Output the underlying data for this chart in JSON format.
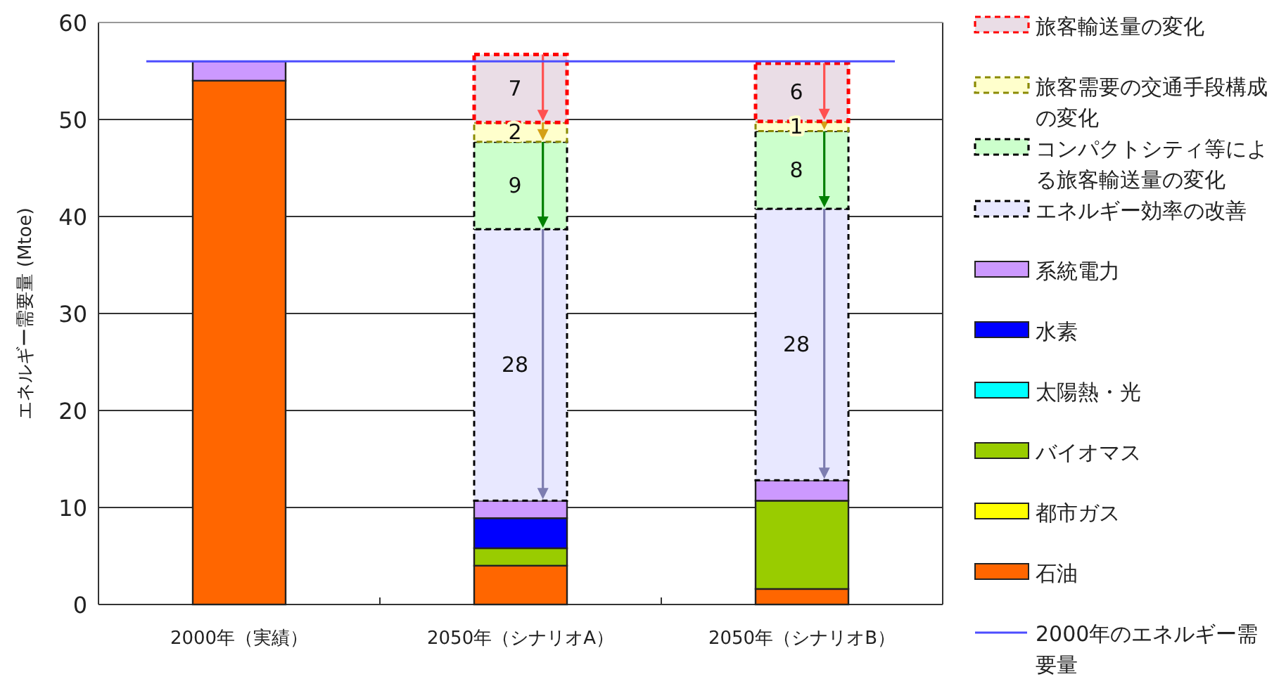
{
  "chart_data": {
    "type": "bar",
    "stacked": true,
    "ylabel": "エネルギー需要量 (Mtoe)",
    "categories": [
      "2000年（実績）",
      "2050年（シナリオA）",
      "2050年（シナリオB）"
    ],
    "ylim": [
      0,
      60
    ],
    "yticks": [
      0,
      10,
      20,
      30,
      40,
      50,
      60
    ],
    "grid": "y",
    "legend": "right",
    "series": [
      {
        "name": "石油",
        "color": "#ff6600",
        "values": [
          54,
          4.0,
          1.6
        ]
      },
      {
        "name": "都市ガス",
        "color": "#ffff00",
        "values": [
          0,
          0,
          0
        ]
      },
      {
        "name": "バイオマス",
        "color": "#99cc00",
        "values": [
          0,
          1.8,
          9.1
        ]
      },
      {
        "name": "太陽熱・光",
        "color": "#00ffff",
        "values": [
          0,
          0,
          0
        ]
      },
      {
        "name": "水素",
        "color": "#0000ff",
        "values": [
          0,
          3.1,
          0
        ]
      },
      {
        "name": "系統電力",
        "color": "#cc99ff",
        "values": [
          2,
          1.8,
          2.1
        ]
      },
      {
        "name": "エネルギー効率の改善",
        "color": "#e8e8ff",
        "line_style": "dashed",
        "values": [
          null,
          28,
          28
        ],
        "value_labels": [
          null,
          "28",
          "28"
        ]
      },
      {
        "name": "コンパクトシティ等による旅客輸送量の変化",
        "color": "#ccffcc",
        "line_style": "dashed",
        "values": [
          null,
          9,
          8
        ],
        "value_labels": [
          null,
          "9",
          "8"
        ]
      },
      {
        "name": "旅客需要の交通手段構成の変化",
        "color": "#ffffcc",
        "line_style": "dashed",
        "values": [
          null,
          2,
          1
        ],
        "value_labels": [
          null,
          "2",
          "1"
        ]
      },
      {
        "name": "旅客輸送量の変化",
        "color": "#eadde6",
        "line_style": "dashed",
        "values": [
          null,
          7,
          6
        ],
        "value_labels": [
          null,
          "7",
          "6"
        ]
      }
    ],
    "ref_lines": [
      {
        "axis": "y",
        "value": 56,
        "label": "2000年のエネルギー需要量",
        "color": "#4d4dff"
      }
    ]
  }
}
